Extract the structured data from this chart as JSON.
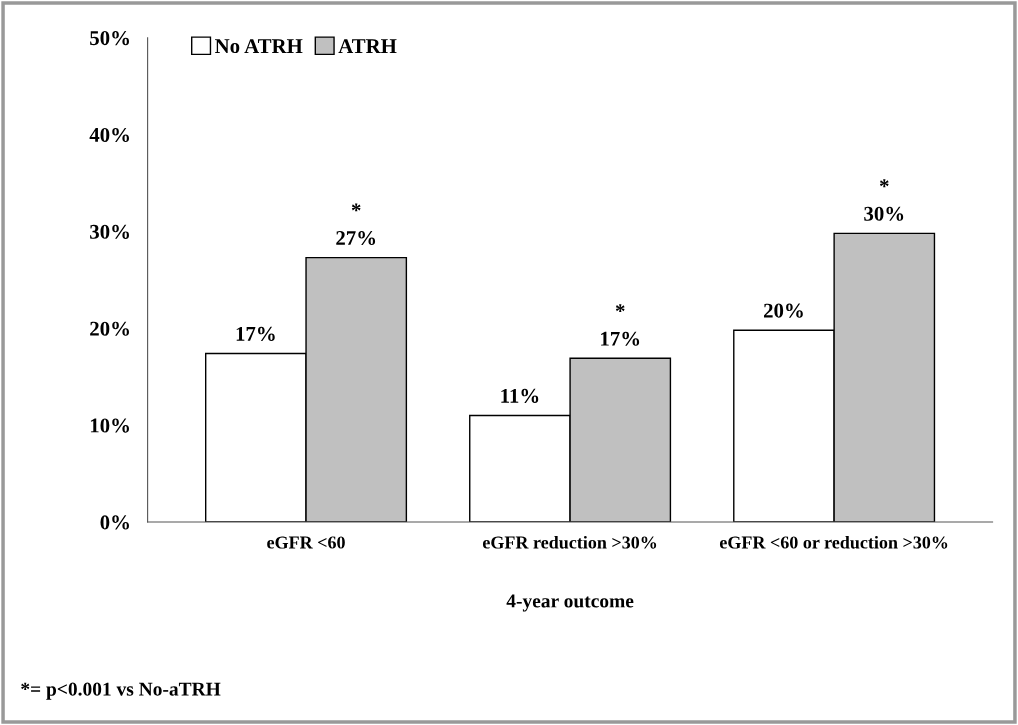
{
  "chart_data": {
    "type": "bar",
    "xlabel": "4-year outcome",
    "categories": [
      "eGFR <60",
      "eGFR reduction >30%",
      "eGFR <60 or reduction >30%"
    ],
    "series": [
      {
        "name": "No ATRH",
        "color": "#ffffff",
        "values": [
          17.4,
          11,
          19.8
        ],
        "value_labels": [
          "17%",
          "11%",
          "20%"
        ]
      },
      {
        "name": "ATRH",
        "color": "#c0c0c0",
        "values": [
          27.3,
          16.9,
          29.8
        ],
        "value_labels": [
          "*\n27%",
          "*\n17%",
          "*\n30%"
        ]
      }
    ],
    "ylim": [
      0,
      50
    ],
    "yticks": [
      {
        "value": 0,
        "label": "0%"
      },
      {
        "value": 10,
        "label": "10%"
      },
      {
        "value": 20,
        "label": "20%"
      },
      {
        "value": 30,
        "label": "30%"
      },
      {
        "value": 40,
        "label": "40%"
      },
      {
        "value": 50,
        "label": "50%"
      }
    ],
    "grid": false,
    "legend": "top left",
    "annotations": [
      "*= p<0.001 vs No-aTRH"
    ]
  }
}
